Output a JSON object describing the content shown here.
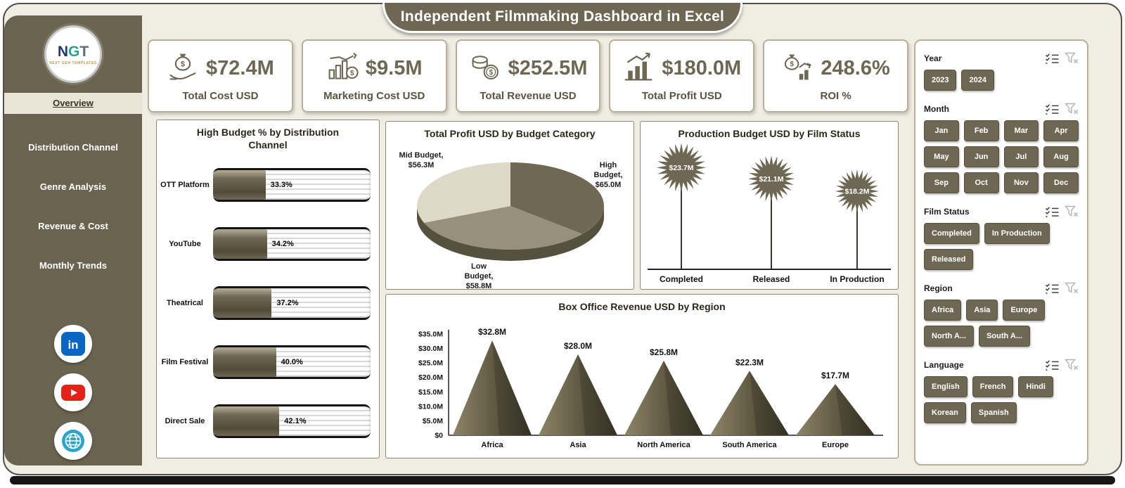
{
  "title": "Independent Filmmaking Dashboard in Excel",
  "colors": {
    "accent": "#6e6753",
    "sidebar": "#6a634f",
    "background": "#f0ede3",
    "linkedin": "#0a66c2",
    "youtube": "#e62117",
    "web": "#2aa5c9"
  },
  "sidebar": {
    "logo": {
      "letters": [
        {
          "char": "N",
          "color": "#1d3b6e"
        },
        {
          "char": "G",
          "color": "#2fa08c"
        },
        {
          "char": "T",
          "color": "#5f6e79"
        }
      ],
      "caption": "NEXT GEN TEMPLATES"
    },
    "items": [
      {
        "label": "Overview",
        "active": true
      },
      {
        "label": "Distribution Channel",
        "active": false
      },
      {
        "label": "Genre Analysis",
        "active": false
      },
      {
        "label": "Revenue & Cost",
        "active": false
      },
      {
        "label": "Monthly Trends",
        "active": false
      }
    ],
    "social": [
      {
        "name": "linkedin"
      },
      {
        "name": "youtube"
      },
      {
        "name": "web"
      }
    ]
  },
  "kpis": [
    {
      "icon": "money-bag-hand-icon",
      "value": "$72.4M",
      "label": "Total Cost USD"
    },
    {
      "icon": "marketing-cost-icon",
      "value": "$9.5M",
      "label": "Marketing Cost USD"
    },
    {
      "icon": "coins-icon",
      "value": "$252.5M",
      "label": "Total Revenue USD"
    },
    {
      "icon": "profit-chart-icon",
      "value": "$180.0M",
      "label": "Total Profit USD"
    },
    {
      "icon": "roi-icon",
      "value": "248.6%",
      "label": "ROI %"
    }
  ],
  "chart_data": [
    {
      "type": "bar",
      "orientation": "horizontal",
      "title": "High Budget % by Distribution Channel",
      "categories": [
        "OTT Platform",
        "YouTube",
        "Theatrical",
        "Film Festival",
        "Direct Sale"
      ],
      "values": [
        33.3,
        34.2,
        37.2,
        40.0,
        42.1
      ],
      "value_labels": [
        "33.3%",
        "34.2%",
        "37.2%",
        "40.0%",
        "42.1%"
      ],
      "xlim": [
        0,
        100
      ]
    },
    {
      "type": "pie",
      "title": "Total Profit USD by Budget Category",
      "slices": [
        {
          "label": "High Budget",
          "value": 65.0,
          "value_label": "$65.0M",
          "callout": "High Budget, $65.0M",
          "color": "#6f6852"
        },
        {
          "label": "Low Budget",
          "value": 58.8,
          "value_label": "$58.8M",
          "callout": "Low Budget, $58.8M",
          "color": "#97917c"
        },
        {
          "label": "Mid Budget",
          "value": 56.3,
          "value_label": "$56.3M",
          "callout": "Mid Budget, $56.3M",
          "color": "#ddd8c8"
        }
      ]
    },
    {
      "type": "star-lollipop",
      "title": "Production Budget USD by Film Status",
      "categories": [
        "Completed",
        "Released",
        "In Production"
      ],
      "values": [
        23.7,
        21.1,
        18.2
      ],
      "value_labels": [
        "$23.7M",
        "$21.1M",
        "$18.2M"
      ]
    },
    {
      "type": "pyramid-bar",
      "title": "Box Office Revenue USD by Region",
      "categories": [
        "Africa",
        "Asia",
        "North America",
        "South America",
        "Europe"
      ],
      "values": [
        32.8,
        28.0,
        25.8,
        22.3,
        17.7
      ],
      "value_labels": [
        "$32.8M",
        "$28.0M",
        "$25.8M",
        "$22.3M",
        "$17.7M"
      ],
      "ylabel_ticks": [
        "$0",
        "$5.0M",
        "$10.0M",
        "$15.0M",
        "$20.0M",
        "$25.0M",
        "$30.0M",
        "$35.0M"
      ],
      "ylim": [
        0,
        35
      ]
    }
  ],
  "slicers": [
    {
      "label": "Year",
      "layout": "wrap",
      "options": [
        "2023",
        "2024"
      ]
    },
    {
      "label": "Month",
      "layout": "grid4",
      "options": [
        "Jan",
        "Feb",
        "Mar",
        "Apr",
        "May",
        "Jun",
        "Jul",
        "Aug",
        "Sep",
        "Oct",
        "Nov",
        "Dec"
      ]
    },
    {
      "label": "Film Status",
      "layout": "wrap",
      "options": [
        "Completed",
        "In Production",
        "Released"
      ]
    },
    {
      "label": "Region",
      "layout": "wrap",
      "options": [
        "Africa",
        "Asia",
        "Europe",
        "North A...",
        "South A..."
      ]
    },
    {
      "label": "Language",
      "layout": "wrap",
      "options": [
        "English",
        "French",
        "Hindi",
        "Korean",
        "Spanish"
      ]
    }
  ]
}
